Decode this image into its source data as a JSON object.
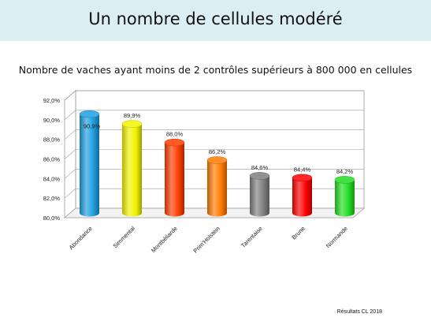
{
  "slide": {
    "title": "Un nombre de cellules modéré",
    "footer": "Résultats CL 2018"
  },
  "chart_data": {
    "type": "bar",
    "style": "3d-cylinder",
    "title": "Nombre de vaches ayant moins de 2 contrôles supérieurs à 800 000 en cellules",
    "categories": [
      "Abondance",
      "Simmental",
      "Montbéliarde",
      "Prim'Holstein",
      "Tarentaise",
      "Brune",
      "Normande"
    ],
    "values": [
      90.9,
      89.9,
      88.0,
      86.2,
      84.6,
      84.4,
      84.2
    ],
    "value_labels": [
      "90,9%",
      "89,9%",
      "88,0%",
      "86,2%",
      "84,6%",
      "84,4%",
      "84,2%"
    ],
    "colors": [
      "#1f9fe0",
      "#f2f200",
      "#ff3d00",
      "#ff7a00",
      "#7f7f7f",
      "#ff0000",
      "#22dd22"
    ],
    "ylim": [
      80,
      92
    ],
    "yticks": [
      "80,0%",
      "82,0%",
      "84,0%",
      "86,0%",
      "88,0%",
      "90,0%",
      "92,0%"
    ],
    "grid": true
  }
}
